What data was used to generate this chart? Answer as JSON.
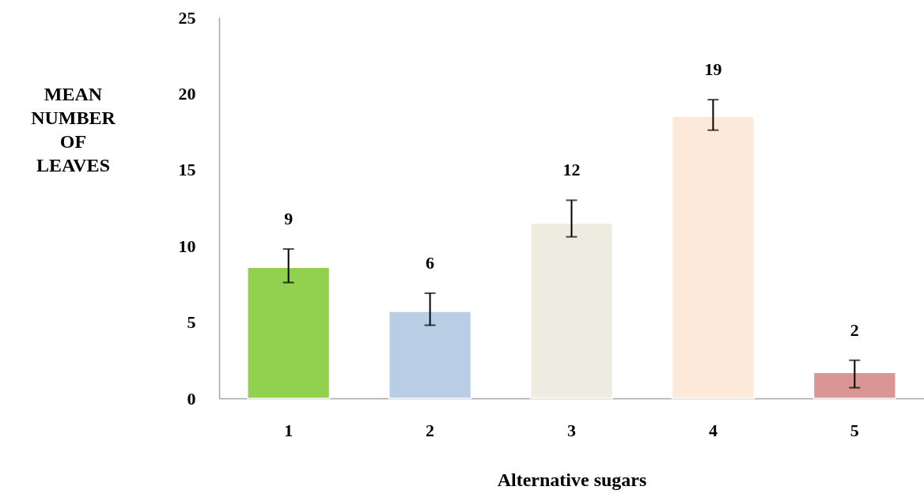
{
  "chart_data": {
    "type": "bar",
    "xlabel": "Alternative sugars",
    "ylabel": "MEAN NUMBER OF LEAVES",
    "categories": [
      "1",
      "2",
      "3",
      "4",
      "5"
    ],
    "values": [
      8.6,
      5.7,
      11.5,
      18.5,
      1.7
    ],
    "colors": [
      "#92d050",
      "#b9cde5",
      "#eeece1",
      "#fde9d9",
      "#d99694"
    ],
    "errors": [
      [
        7.6,
        9.8
      ],
      [
        4.8,
        6.9
      ],
      [
        10.6,
        13.0
      ],
      [
        17.6,
        19.6
      ],
      [
        0.7,
        2.5
      ]
    ],
    "value_labels": [
      "9",
      "6",
      "12",
      "19",
      "2"
    ],
    "ylim": [
      0,
      25
    ],
    "yticks": [
      0,
      5,
      10,
      15,
      20,
      25
    ],
    "grid": false
  }
}
